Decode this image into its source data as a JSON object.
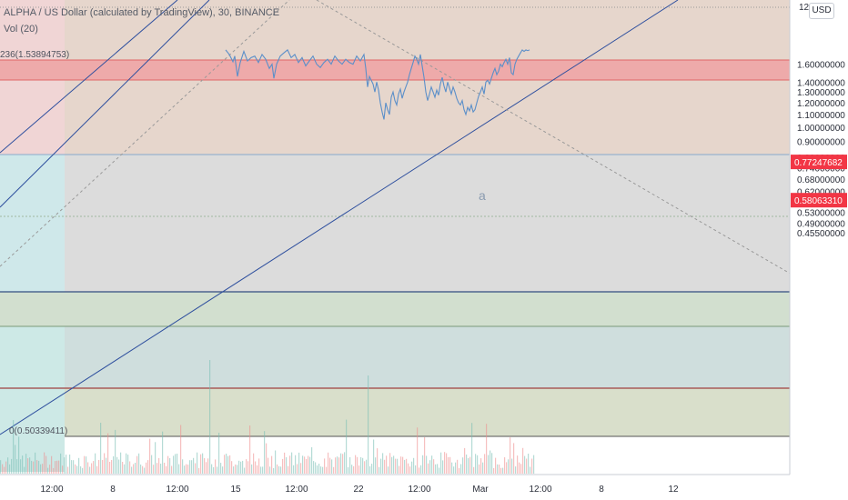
{
  "header": {
    "title": "ALPHA / US Dollar (calculated by TradingView), 30, BINANCE",
    "volume_indicator": "Vol (20)",
    "currency_button": "USD",
    "top_price_partial": "12"
  },
  "annotations": {
    "fib_top": "236(1.53894753)",
    "fib_zero": "0(0.50339411)",
    "wave": "a"
  },
  "chart_data": {
    "type": "line",
    "title": "ALPHA / US Dollar (calculated by TradingView), 30, BINANCE",
    "y_scale": "log",
    "ylim": [
      0.43,
      1.78
    ],
    "y_ticks": [
      {
        "value": 1.6,
        "label": "1.60000000"
      },
      {
        "value": 1.4,
        "label": "1.40000000"
      },
      {
        "value": 1.3,
        "label": "1.30000000"
      },
      {
        "value": 1.2,
        "label": "1.20000000"
      },
      {
        "value": 1.1,
        "label": "1.10000000"
      },
      {
        "value": 1.0,
        "label": "1.00000000"
      },
      {
        "value": 0.9,
        "label": "0.90000000"
      },
      {
        "value": 0.8,
        "label": "0.80000000"
      },
      {
        "value": 0.74,
        "label": "0.74000000"
      },
      {
        "value": 0.68,
        "label": "0.68000000"
      },
      {
        "value": 0.62,
        "label": "0.62000000"
      },
      {
        "value": 0.57,
        "label": "0.57000000"
      },
      {
        "value": 0.53,
        "label": "0.53000000"
      },
      {
        "value": 0.49,
        "label": "0.49000000"
      },
      {
        "value": 0.455,
        "label": "0.45500000"
      }
    ],
    "x_ticks": [
      "12:00",
      "8",
      "12:00",
      "15",
      "12:00",
      "22",
      "12:00",
      "Mar",
      "12:00",
      "8",
      "12"
    ],
    "price_badges": [
      {
        "value": 0.77247682,
        "label": "0.77247682",
        "color": "#f23645"
      },
      {
        "value": 0.5806331,
        "label": "0.58063310",
        "color": "#f23645"
      }
    ],
    "fib_levels": [
      {
        "value": 1.53894753,
        "label": "236(1.53894753)"
      },
      {
        "value": 1.455
      },
      {
        "value": 1.17
      },
      {
        "value": 0.975
      },
      {
        "value": 0.77247682
      },
      {
        "value": 0.7
      },
      {
        "value": 0.5806331
      },
      {
        "value": 0.50339411,
        "label": "0(0.50339411)"
      }
    ],
    "series": [
      {
        "points": [
          [
            248,
            1.78
          ],
          [
            252,
            1.72
          ],
          [
            256,
            1.63
          ],
          [
            258,
            1.7
          ],
          [
            261,
            1.46
          ],
          [
            264,
            1.62
          ],
          [
            268,
            1.76
          ],
          [
            272,
            1.64
          ],
          [
            276,
            1.68
          ],
          [
            280,
            1.7
          ],
          [
            284,
            1.62
          ],
          [
            288,
            1.72
          ],
          [
            292,
            1.66
          ],
          [
            296,
            1.55
          ],
          [
            299,
            1.6
          ],
          [
            301,
            1.44
          ],
          [
            304,
            1.6
          ],
          [
            308,
            1.7
          ],
          [
            312,
            1.74
          ],
          [
            316,
            1.78
          ],
          [
            320,
            1.68
          ],
          [
            324,
            1.72
          ],
          [
            328,
            1.62
          ],
          [
            332,
            1.68
          ],
          [
            336,
            1.58
          ],
          [
            340,
            1.64
          ],
          [
            344,
            1.7
          ],
          [
            348,
            1.6
          ],
          [
            352,
            1.56
          ],
          [
            356,
            1.62
          ],
          [
            360,
            1.66
          ],
          [
            364,
            1.6
          ],
          [
            368,
            1.7
          ],
          [
            372,
            1.64
          ],
          [
            376,
            1.6
          ],
          [
            380,
            1.66
          ],
          [
            384,
            1.62
          ],
          [
            388,
            1.6
          ],
          [
            392,
            1.7
          ],
          [
            396,
            1.64
          ],
          [
            400,
            1.72
          ],
          [
            402,
            1.55
          ],
          [
            404,
            1.35
          ],
          [
            406,
            1.46
          ],
          [
            408,
            1.42
          ],
          [
            410,
            1.38
          ],
          [
            412,
            1.3
          ],
          [
            414,
            1.4
          ],
          [
            416,
            1.32
          ],
          [
            418,
            1.2
          ],
          [
            420,
            1.12
          ],
          [
            422,
            1.06
          ],
          [
            424,
            1.2
          ],
          [
            426,
            1.14
          ],
          [
            428,
            1.1
          ],
          [
            430,
            1.25
          ],
          [
            432,
            1.3
          ],
          [
            434,
            1.22
          ],
          [
            436,
            1.18
          ],
          [
            438,
            1.28
          ],
          [
            440,
            1.33
          ],
          [
            442,
            1.24
          ],
          [
            444,
            1.3
          ],
          [
            446,
            1.35
          ],
          [
            448,
            1.4
          ],
          [
            450,
            1.48
          ],
          [
            452,
            1.55
          ],
          [
            454,
            1.62
          ],
          [
            456,
            1.7
          ],
          [
            458,
            1.66
          ],
          [
            460,
            1.6
          ],
          [
            462,
            1.72
          ],
          [
            464,
            1.58
          ],
          [
            466,
            1.45
          ],
          [
            468,
            1.3
          ],
          [
            470,
            1.22
          ],
          [
            472,
            1.28
          ],
          [
            474,
            1.35
          ],
          [
            476,
            1.3
          ],
          [
            478,
            1.25
          ],
          [
            480,
            1.32
          ],
          [
            482,
            1.27
          ],
          [
            484,
            1.38
          ],
          [
            486,
            1.45
          ],
          [
            488,
            1.36
          ],
          [
            490,
            1.3
          ],
          [
            492,
            1.4
          ],
          [
            494,
            1.34
          ],
          [
            496,
            1.28
          ],
          [
            498,
            1.35
          ],
          [
            500,
            1.3
          ],
          [
            502,
            1.24
          ],
          [
            504,
            1.2
          ],
          [
            506,
            1.18
          ],
          [
            508,
            1.22
          ],
          [
            510,
            1.14
          ],
          [
            512,
            1.1
          ],
          [
            514,
            1.16
          ],
          [
            516,
            1.13
          ],
          [
            518,
            1.18
          ],
          [
            520,
            1.12
          ],
          [
            522,
            1.14
          ],
          [
            524,
            1.2
          ],
          [
            526,
            1.26
          ],
          [
            528,
            1.3
          ],
          [
            530,
            1.35
          ],
          [
            532,
            1.28
          ],
          [
            534,
            1.4
          ],
          [
            536,
            1.42
          ],
          [
            538,
            1.38
          ],
          [
            540,
            1.44
          ],
          [
            542,
            1.5
          ],
          [
            544,
            1.55
          ],
          [
            546,
            1.48
          ],
          [
            548,
            1.52
          ],
          [
            550,
            1.6
          ],
          [
            552,
            1.57
          ],
          [
            554,
            1.62
          ],
          [
            556,
            1.66
          ],
          [
            558,
            1.6
          ],
          [
            560,
            1.68
          ],
          [
            562,
            1.5
          ],
          [
            564,
            1.48
          ],
          [
            566,
            1.6
          ],
          [
            568,
            1.66
          ],
          [
            570,
            1.7
          ],
          [
            572,
            1.74
          ],
          [
            574,
            1.78
          ],
          [
            576,
            1.76
          ],
          [
            578,
            1.78
          ],
          [
            580,
            1.77
          ],
          [
            582,
            1.78
          ]
        ]
      }
    ],
    "volume": "Vol (20) histogram",
    "trendlines": [
      {
        "style": "solid",
        "from": [
          0,
          0.95
        ],
        "to": [
          230,
          1.78
        ]
      },
      {
        "style": "solid",
        "from": [
          0,
          0.52
        ],
        "to": [
          745,
          1.78
        ]
      },
      {
        "style": "dashed",
        "from": [
          0,
          0.78
        ],
        "to": [
          318,
          1.78
        ]
      },
      {
        "style": "dashed",
        "from": [
          348,
          1.78
        ],
        "to": [
          872,
          0.8
        ]
      }
    ]
  }
}
